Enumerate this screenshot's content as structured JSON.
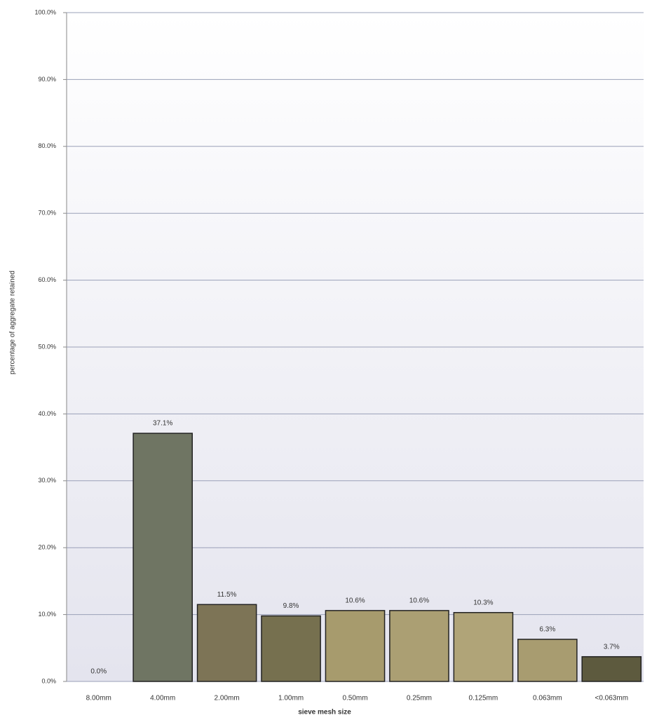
{
  "chart_data": {
    "type": "bar",
    "x_label": "sieve mesh size",
    "y_label": "percentage of aggregate retained",
    "categories": [
      "8.00mm",
      "4.00mm",
      "2.00mm",
      "1.00mm",
      "0.50mm",
      "0.25mm",
      "0.125mm",
      "0.063mm",
      "<0.063mm"
    ],
    "values": [
      0.0,
      37.1,
      11.5,
      9.8,
      10.6,
      10.6,
      10.3,
      6.3,
      3.7
    ],
    "value_labels": [
      "0.0%",
      "37.1%",
      "11.5%",
      "9.8%",
      "10.6%",
      "10.6%",
      "10.3%",
      "6.3%",
      "3.7%"
    ],
    "colors": [
      "#8a8a7a",
      "#6f7563",
      "#7d7456",
      "#76704f",
      "#a79b6d",
      "#ab9f73",
      "#b0a478",
      "#a89c70",
      "#5d5a3e"
    ],
    "ylim": [
      0,
      100
    ],
    "yticks": [
      {
        "value": 0,
        "label": "0.0%"
      },
      {
        "value": 10,
        "label": "10.0%"
      },
      {
        "value": 20,
        "label": "20.0%"
      },
      {
        "value": 30,
        "label": "30.0%"
      },
      {
        "value": 40,
        "label": "40.0%"
      },
      {
        "value": 50,
        "label": "50.0%"
      },
      {
        "value": 60,
        "label": "60.0%"
      },
      {
        "value": 70,
        "label": "70.0%"
      },
      {
        "value": 80,
        "label": "80.0%"
      },
      {
        "value": 90,
        "label": "90.0%"
      },
      {
        "value": 100,
        "label": "100.0%"
      }
    ],
    "grid": true
  }
}
